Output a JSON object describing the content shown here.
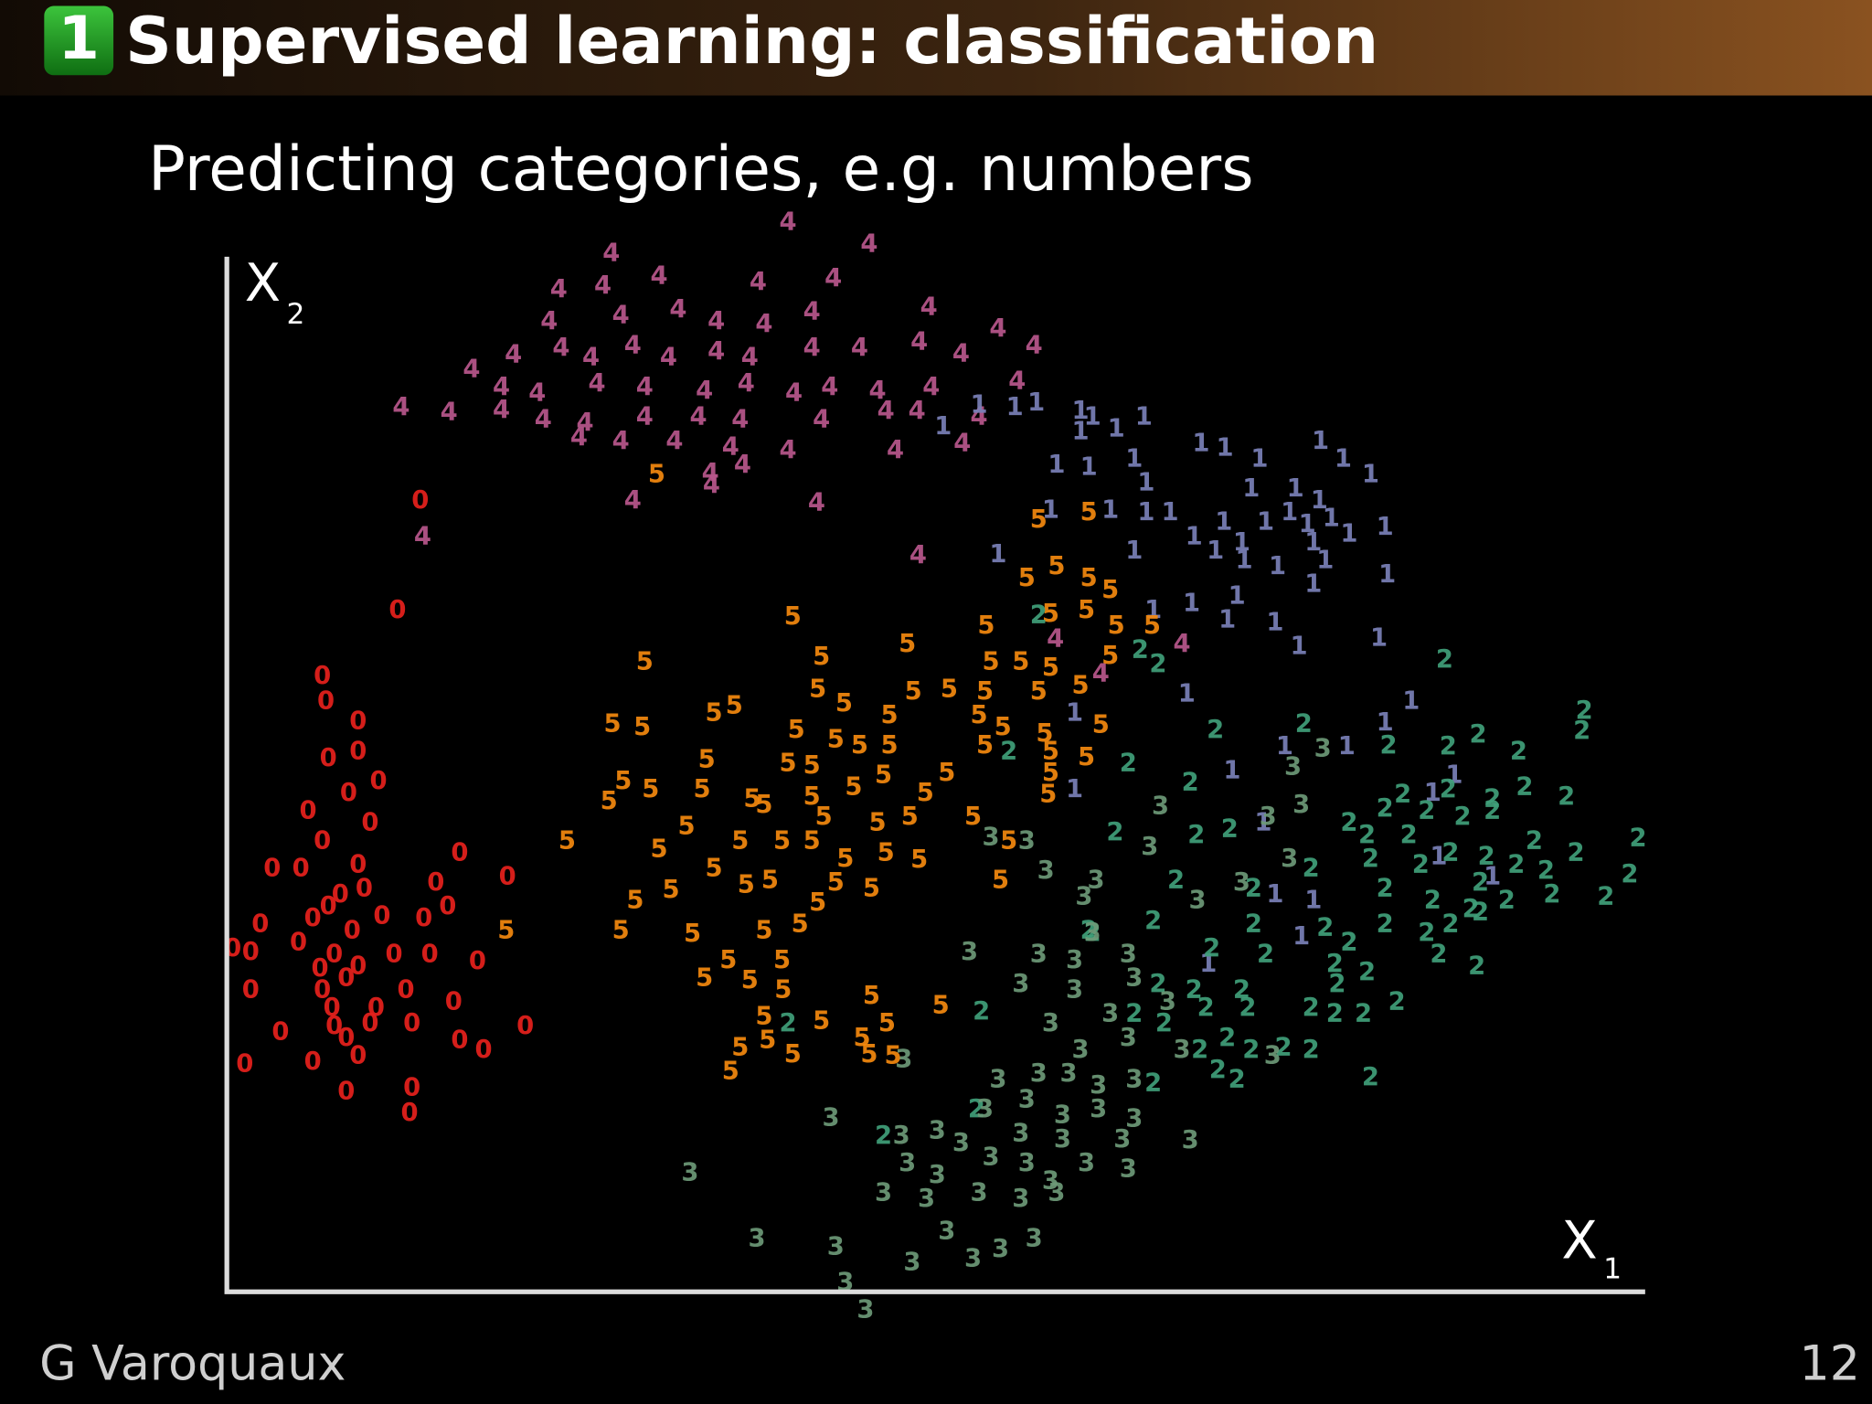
{
  "header": {
    "number": "1",
    "title": "Supervised learning: classification"
  },
  "subtitle": "Predicting categories, e.g. numbers",
  "footer": {
    "author": "G Varoquaux",
    "page": "12"
  },
  "chart_data": {
    "type": "scatter",
    "x_label": "X",
    "x_label_sub": "1",
    "y_label": "X",
    "y_label_sub": "2",
    "xlim": [
      0,
      1188
    ],
    "ylim": [
      0,
      867
    ],
    "series": [
      {
        "name": "0",
        "color": "#e8211d",
        "x": [
          162,
          143,
          80,
          83,
          110,
          85,
          110,
          127,
          102,
          68,
          120,
          80,
          38,
          62,
          110,
          195,
          235,
          175,
          185,
          28,
          72,
          130,
          165,
          5,
          20,
          60,
          90,
          110,
          140,
          170,
          210,
          20,
          80,
          100,
          150,
          190,
          45,
          90,
          120,
          155,
          250,
          195,
          215,
          15,
          72,
          110,
          100,
          155,
          153,
          88,
          105,
          95,
          78,
          125,
          100,
          85,
          115
        ],
        "values": [
          662,
          570,
          515,
          494,
          477,
          446,
          452,
          427,
          417,
          402,
          392,
          377,
          354,
          354,
          357,
          367,
          347,
          342,
          322,
          307,
          312,
          314,
          312,
          287,
          284,
          292,
          282,
          272,
          282,
          282,
          276,
          252,
          252,
          262,
          252,
          242,
          217,
          222,
          224,
          224,
          222,
          210,
          202,
          190,
          192,
          197,
          167,
          170,
          149,
          237,
          302,
          332,
          270,
          237,
          212,
          322,
          337
        ]
      },
      {
        "name": "4",
        "color": "#b9578c",
        "x": [
          470,
          538,
          322,
          278,
          315,
          362,
          445,
          508,
          270,
          330,
          378,
          410,
          450,
          490,
          588,
          646,
          205,
          240,
          280,
          305,
          340,
          370,
          410,
          438,
          490,
          530,
          580,
          615,
          676,
          230,
          260,
          310,
          350,
          400,
          435,
          475,
          505,
          545,
          590,
          662,
          146,
          186,
          230,
          265,
          300,
          350,
          395,
          430,
          498,
          552,
          578,
          630,
          295,
          330,
          375,
          422,
          470,
          560,
          616,
          405,
          432,
          406,
          340,
          494,
          164,
          579,
          800,
          694,
          732
        ],
        "values": [
          895,
          877,
          869,
          839,
          842,
          850,
          845,
          848,
          812,
          817,
          822,
          812,
          810,
          820,
          824,
          806,
          772,
          784,
          790,
          782,
          792,
          782,
          787,
          782,
          790,
          790,
          795,
          785,
          792,
          757,
          752,
          760,
          757,
          754,
          760,
          752,
          757,
          754,
          757,
          762,
          740,
          736,
          738,
          730,
          727,
          732,
          732,
          730,
          730,
          737,
          737,
          732,
          715,
          712,
          712,
          707,
          704,
          704,
          710,
          685,
          692,
          675,
          662,
          660,
          632,
          616,
          542,
          546,
          517
        ]
      },
      {
        "name": "1",
        "color": "#7a80b8",
        "x": [
          630,
          660,
          678,
          715,
          725,
          768,
          600,
          715,
          745,
          816,
          836,
          916,
          865,
          935,
          958,
          695,
          722,
          760,
          770,
          858,
          895,
          915,
          690,
          740,
          770,
          790,
          835,
          870,
          890,
          905,
          925,
          970,
          810,
          850,
          910,
          940,
          646,
          760,
          828,
          852,
          880,
          920,
          972,
          910,
          776,
          808,
          846,
          838,
          878,
          965,
          898,
          804,
          992,
          710,
          970,
          886,
          938,
          842,
          1028,
          710,
          1010,
          868,
          1015,
          1060,
          878,
          910,
          822,
          900
        ],
        "values": [
          742,
          740,
          744,
          737,
          732,
          732,
          724,
          720,
          722,
          710,
          706,
          712,
          697,
          697,
          684,
          692,
          690,
          697,
          677,
          672,
          672,
          662,
          654,
          654,
          652,
          652,
          644,
          644,
          652,
          642,
          647,
          640,
          632,
          627,
          627,
          634,
          617,
          620,
          620,
          612,
          607,
          612,
          600,
          592,
          570,
          576,
          582,
          562,
          560,
          547,
          540,
          500,
          494,
          484,
          476,
          456,
          456,
          436,
          432,
          420,
          417,
          392,
          364,
          347,
          332,
          327,
          274,
          297
        ]
      },
      {
        "name": "5",
        "color": "#f5890f",
        "x": [
          360,
          680,
          722,
          695,
          670,
          722,
          740,
          474,
          690,
          720,
          745,
          775,
          636,
          350,
          498,
          570,
          640,
          665,
          690,
          740,
          495,
          517,
          575,
          605,
          635,
          680,
          715,
          323,
          348,
          408,
          425,
          477,
          510,
          555,
          630,
          650,
          685,
          732,
          402,
          470,
          490,
          530,
          555,
          635,
          690,
          720,
          332,
          355,
          398,
          440,
          490,
          525,
          550,
          585,
          603,
          688,
          320,
          450,
          500,
          545,
          572,
          625,
          285,
          362,
          385,
          430,
          465,
          490,
          518,
          552,
          580,
          655,
          408,
          435,
          455,
          510,
          540,
          648,
          342,
          372,
          495,
          330,
          390,
          450,
          480,
          400,
          420,
          438,
          465,
          466,
          540,
          598,
          450,
          498,
          553,
          532,
          430,
          453,
          474,
          422,
          538,
          558,
          234,
          690
        ],
        "values": [
          684,
          646,
          652,
          607,
          597,
          597,
          587,
          565,
          567,
          570,
          557,
          557,
          557,
          527,
          531,
          542,
          527,
          527,
          522,
          532,
          504,
          492,
          502,
          504,
          502,
          502,
          507,
          475,
          472,
          484,
          490,
          470,
          462,
          482,
          482,
          472,
          467,
          474,
          445,
          442,
          440,
          457,
          457,
          457,
          452,
          447,
          427,
          420,
          420,
          412,
          414,
          422,
          432,
          417,
          434,
          416,
          410,
          407,
          397,
          392,
          397,
          397,
          377,
          370,
          389,
          377,
          377,
          377,
          362,
          367,
          361,
          377,
          354,
          340,
          344,
          342,
          337,
          344,
          327,
          336,
          325,
          302,
          299,
          302,
          307,
          262,
          277,
          260,
          277,
          252,
          247,
          239,
          230,
          226,
          224,
          212,
          204,
          210,
          198,
          184,
          198,
          197,
          302,
          434
        ]
      },
      {
        "name": "2",
        "color": "#40a07a",
        "x": [
          1020,
          765,
          780,
          680,
          1137,
          1135,
          828,
          902,
          973,
          1023,
          1048,
          1082,
          755,
          655,
          807,
          985,
          1023,
          1060,
          1087,
          1122,
          940,
          970,
          1005,
          1035,
          1060,
          744,
          812,
          840,
          908,
          955,
          990,
          1025,
          1055,
          1095,
          1130,
          1182,
          958,
          1000,
          1050,
          1080,
          1105,
          1175,
          795,
          860,
          970,
          1010,
          1042,
          1072,
          1110,
          1155,
          722,
          776,
          860,
          920,
          940,
          970,
          1005,
          1025,
          1050,
          825,
          870,
          928,
          955,
          1015,
          1047,
          780,
          810,
          850,
          930,
          820,
          855,
          908,
          928,
          952,
          980,
          632,
          760,
          785,
          838,
          858,
          885,
          908,
          815,
          830,
          846,
          958,
          776,
          470,
          628,
          550,
          725
        ],
        "values": [
          529,
          537,
          525,
          566,
          486,
          469,
          470,
          475,
          457,
          456,
          466,
          452,
          442,
          452,
          426,
          416,
          420,
          412,
          422,
          414,
          392,
          404,
          402,
          397,
          402,
          384,
          382,
          387,
          354,
          382,
          382,
          367,
          364,
          377,
          367,
          379,
          362,
          357,
          342,
          357,
          352,
          349,
          344,
          337,
          337,
          327,
          320,
          327,
          332,
          330,
          302,
          310,
          307,
          304,
          292,
          307,
          300,
          307,
          317,
          287,
          282,
          274,
          267,
          282,
          272,
          257,
          252,
          252,
          257,
          237,
          237,
          237,
          232,
          232,
          242,
          234,
          232,
          224,
          212,
          202,
          204,
          202,
          202,
          185,
          177,
          179,
          174,
          224,
          152,
          130,
          300
        ]
      },
      {
        "name": "3",
        "color": "#6d9a78",
        "x": [
          918,
          900,
          893,
          782,
          872,
          773,
          813,
          850,
          890,
          640,
          670,
          686,
          728,
          718,
          725,
          622,
          680,
          710,
          755,
          665,
          710,
          760,
          690,
          740,
          788,
          715,
          755,
          800,
          876,
          646,
          680,
          705,
          730,
          760,
          635,
          670,
          700,
          730,
          760,
          506,
          665,
          700,
          750,
          807,
          565,
          595,
          615,
          570,
          595,
          640,
          670,
          690,
          720,
          755,
          586,
          630,
          665,
          695,
          388,
          444,
          510,
          574,
          603,
          625,
          648,
          676,
          518,
          535,
          567,
          550
        ],
        "values": [
          454,
          407,
          439,
          406,
          397,
          372,
          327,
          342,
          362,
          380,
          377,
          352,
          344,
          330,
          300,
          284,
          282,
          277,
          282,
          257,
          252,
          262,
          224,
          232,
          242,
          202,
          212,
          202,
          197,
          177,
          182,
          182,
          172,
          177,
          152,
          160,
          147,
          152,
          144,
          145,
          132,
          127,
          127,
          126,
          130,
          134,
          124,
          107,
          97,
          112,
          107,
          92,
          107,
          102,
          77,
          82,
          77,
          82,
          99,
          44,
          37,
          24,
          50,
          27,
          35,
          44,
          7,
          -16,
          194,
          82
        ]
      }
    ]
  }
}
